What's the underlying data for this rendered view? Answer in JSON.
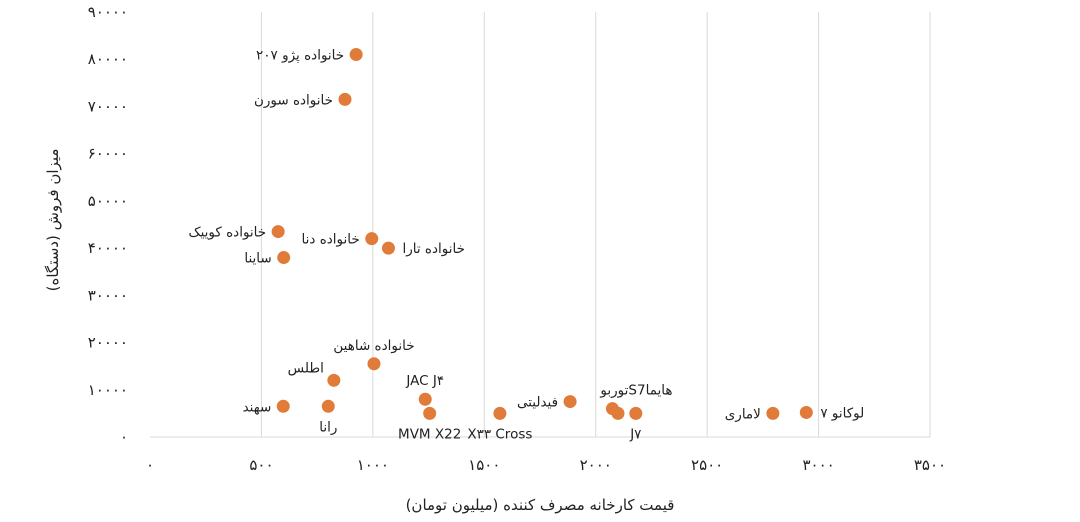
{
  "chart_data": {
    "type": "scatter",
    "xlabel": "قیمت کارخانه مصرف کننده (میلیون تومان)",
    "ylabel": "میزان فروش (دستگاه)",
    "xlim": [
      0,
      3500
    ],
    "ylim": [
      0,
      90000
    ],
    "x_ticks": [
      0,
      500,
      1000,
      1500,
      2000,
      2500,
      3000,
      3500
    ],
    "x_tick_labels": [
      "۰",
      "۵۰۰",
      "۱۰۰۰",
      "۱۵۰۰",
      "۲۰۰۰",
      "۲۵۰۰",
      "۳۰۰۰",
      "۳۵۰۰"
    ],
    "y_ticks": [
      0,
      10000,
      20000,
      30000,
      40000,
      50000,
      60000,
      70000,
      80000,
      90000
    ],
    "y_tick_labels": [
      "۰",
      "۱۰۰۰۰",
      "۲۰۰۰۰",
      "۳۰۰۰۰",
      "۴۰۰۰۰",
      "۵۰۰۰۰",
      "۶۰۰۰۰",
      "۷۰۰۰۰",
      "۸۰۰۰۰",
      "۹۰۰۰۰"
    ],
    "grid": "vertical",
    "marker_color": "#e07b39",
    "points": [
      {
        "label": "خانواده پژو ۲۰۷",
        "x": 925,
        "y": 81000,
        "label_pos": "left"
      },
      {
        "label": "خانواده سورن",
        "x": 875,
        "y": 71500,
        "label_pos": "left"
      },
      {
        "label": "خانواده کوییک",
        "x": 575,
        "y": 43500,
        "label_pos": "left"
      },
      {
        "label": "ساینا",
        "x": 600,
        "y": 38000,
        "label_pos": "left"
      },
      {
        "label": "خانواده دنا",
        "x": 995,
        "y": 42000,
        "label_pos": "left"
      },
      {
        "label": "خانواده تارا",
        "x": 1070,
        "y": 40000,
        "label_pos": "right"
      },
      {
        "label": "خانواده شاهین",
        "x": 1005,
        "y": 15500,
        "label_pos": "above"
      },
      {
        "label": "اطلس",
        "x": 825,
        "y": 12000,
        "label_pos": "above-left"
      },
      {
        "label": "سهند",
        "x": 598,
        "y": 6500,
        "label_pos": "left"
      },
      {
        "label": "رانا",
        "x": 800,
        "y": 6500,
        "label_pos": "below"
      },
      {
        "label": "JAC J۴",
        "x": 1235,
        "y": 8000,
        "label_pos": "above"
      },
      {
        "label": "MVM X22",
        "x": 1255,
        "y": 5000,
        "label_pos": "below"
      },
      {
        "label": "X۳۳ Cross",
        "x": 1570,
        "y": 5000,
        "label_pos": "below"
      },
      {
        "label": "فیدلیتی",
        "x": 1885,
        "y": 7500,
        "label_pos": "left"
      },
      {
        "label": "توربوS7هایما",
        "x": 2075,
        "y": 6000,
        "label_pos": "above-right"
      },
      {
        "label": "",
        "x": 2100,
        "y": 5000,
        "label_pos": "none"
      },
      {
        "label": "J۷",
        "x": 2180,
        "y": 5000,
        "label_pos": "below"
      },
      {
        "label": "لاماری",
        "x": 2795,
        "y": 5000,
        "label_pos": "left"
      },
      {
        "label": "لوکانو ۷",
        "x": 2945,
        "y": 5200,
        "label_pos": "right"
      }
    ]
  }
}
